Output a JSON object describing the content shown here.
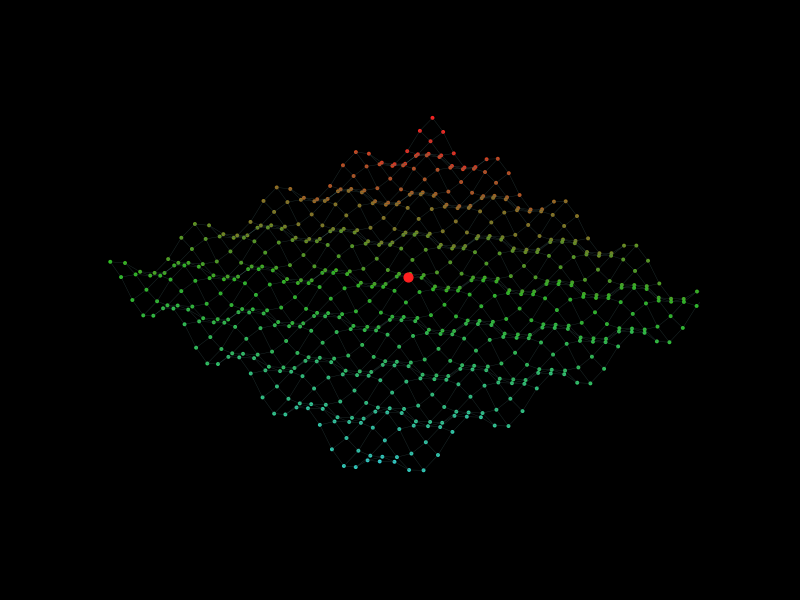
{
  "chart_data": {
    "type": "surface3d",
    "tick_labels": false,
    "x": [
      0,
      1,
      2,
      3,
      4,
      5,
      6,
      7,
      8,
      9,
      10,
      11,
      12,
      13,
      14,
      15,
      16,
      17,
      18,
      19,
      20,
      21,
      22,
      23,
      24
    ],
    "y": [
      0,
      1,
      2,
      3,
      4,
      5,
      6,
      7,
      8,
      9,
      10,
      11,
      12,
      13,
      14,
      15,
      16,
      17,
      18,
      19,
      20,
      21,
      22,
      23,
      24
    ],
    "xlim": [
      0,
      24
    ],
    "ylim": [
      0,
      24
    ],
    "zlim": [
      -4,
      4
    ],
    "colors": [
      "#ff2020",
      "#30c020",
      "#30d0d0"
    ],
    "z": [
      [
        1,
        0.5,
        -0.5,
        -1,
        -0.5,
        0.5,
        1,
        0.5,
        -0.5,
        -1,
        -0.5,
        0.5,
        1,
        0.5,
        -0.5,
        -1,
        -0.5,
        0.5,
        1,
        0.5,
        -0.5,
        -1,
        -0.5,
        0.5,
        1
      ],
      [
        0.5,
        0.25,
        -0.25,
        -0.5,
        -0.25,
        0.25,
        0.5,
        0.25,
        -0.25,
        -0.5,
        -0.25,
        0.25,
        0.5,
        0.25,
        -0.25,
        -0.5,
        -0.25,
        0.25,
        0.5,
        0.25,
        -0.25,
        -0.5,
        -0.25,
        0.25,
        0.5
      ],
      [
        -0.5,
        -0.25,
        0.25,
        0.5,
        0.25,
        -0.25,
        -0.5,
        -0.25,
        0.25,
        0.5,
        0.25,
        -0.25,
        -0.5,
        -0.25,
        0.25,
        0.5,
        0.25,
        -0.25,
        -0.5,
        -0.25,
        0.25,
        0.5,
        0.25,
        -0.25,
        -0.5
      ],
      [
        -1,
        -0.5,
        0.5,
        1,
        0.5,
        -0.5,
        -1,
        -0.5,
        0.5,
        1,
        0.5,
        -0.5,
        -1,
        -0.5,
        0.5,
        1,
        0.5,
        -0.5,
        -1,
        -0.5,
        0.5,
        1,
        0.5,
        -0.5,
        -1
      ],
      [
        -0.5,
        -0.25,
        0.25,
        0.5,
        0.25,
        -0.25,
        -0.5,
        -0.25,
        0.25,
        0.5,
        0.25,
        -0.25,
        -0.5,
        -0.25,
        0.25,
        0.5,
        0.25,
        -0.25,
        -0.5,
        -0.25,
        0.25,
        0.5,
        0.25,
        -0.25,
        -0.5
      ],
      [
        0.5,
        0.25,
        -0.25,
        -0.5,
        -0.25,
        0.25,
        0.5,
        0.25,
        -0.25,
        -0.5,
        -0.25,
        0.25,
        0.5,
        0.25,
        -0.25,
        -0.5,
        -0.25,
        0.25,
        0.5,
        0.25,
        -0.25,
        -0.5,
        -0.25,
        0.25,
        0.5
      ],
      [
        1,
        0.5,
        -0.5,
        -1,
        -0.5,
        0.5,
        1,
        0.5,
        -0.5,
        -1,
        -0.5,
        0.5,
        1,
        0.5,
        -0.5,
        -1,
        -0.5,
        0.5,
        1,
        0.5,
        -0.5,
        -1,
        -0.5,
        0.5,
        1
      ],
      [
        0.5,
        0.25,
        -0.25,
        -0.5,
        -0.25,
        0.25,
        0.5,
        0.25,
        -0.25,
        -0.5,
        -0.25,
        0.25,
        0.5,
        0.25,
        -0.25,
        -0.5,
        -0.25,
        0.25,
        0.5,
        0.25,
        -0.25,
        -0.5,
        -0.25,
        0.25,
        0.5
      ],
      [
        -0.5,
        -0.25,
        0.25,
        0.5,
        0.25,
        -0.25,
        -0.5,
        -0.25,
        0.25,
        0.5,
        0.25,
        -0.25,
        -0.5,
        -0.25,
        0.25,
        0.5,
        0.25,
        -0.25,
        -0.5,
        -0.25,
        0.25,
        0.5,
        0.25,
        -0.25,
        -0.5
      ],
      [
        -1,
        -0.5,
        0.5,
        1,
        0.5,
        -0.5,
        -1,
        -0.5,
        0.5,
        1,
        0.5,
        -0.5,
        -1,
        -0.5,
        0.5,
        1,
        0.5,
        -0.5,
        -1,
        -0.5,
        0.5,
        1,
        0.5,
        -0.5,
        -1
      ],
      [
        -0.5,
        -0.25,
        0.25,
        0.5,
        0.25,
        -0.25,
        -0.5,
        -0.25,
        0.25,
        0.5,
        0.25,
        -0.25,
        -0.5,
        -0.25,
        0.25,
        0.5,
        0.25,
        -0.25,
        -0.5,
        -0.25,
        0.25,
        0.5,
        0.25,
        -0.25,
        -0.5
      ],
      [
        0.5,
        0.25,
        -0.25,
        -0.5,
        -0.25,
        0.25,
        0.5,
        0.25,
        -0.25,
        -0.5,
        -0.25,
        0.25,
        0.5,
        0.25,
        -0.25,
        -0.5,
        -0.25,
        0.25,
        0.5,
        0.25,
        -0.25,
        -0.5,
        -0.25,
        0.25,
        0.5
      ],
      [
        1,
        0.5,
        -0.5,
        -1,
        -0.5,
        0.5,
        1,
        0.5,
        -0.5,
        -1,
        -0.5,
        0.5,
        1,
        0.5,
        -0.5,
        -1,
        -0.5,
        0.5,
        1,
        0.5,
        -0.5,
        -1,
        -0.5,
        0.5,
        1
      ],
      [
        0.5,
        0.25,
        -0.25,
        -0.5,
        -0.25,
        0.25,
        0.5,
        0.25,
        -0.25,
        -0.5,
        -0.25,
        0.25,
        0.5,
        0.25,
        -0.25,
        -0.5,
        -0.25,
        0.25,
        0.5,
        0.25,
        -0.25,
        -0.5,
        -0.25,
        0.25,
        0.5
      ],
      [
        -0.5,
        -0.25,
        0.25,
        0.5,
        0.25,
        -0.25,
        -0.5,
        -0.25,
        0.25,
        0.5,
        0.25,
        -0.25,
        -0.5,
        -0.25,
        0.25,
        0.5,
        0.25,
        -0.25,
        -0.5,
        -0.25,
        0.25,
        0.5,
        0.25,
        -0.25,
        -0.5
      ],
      [
        -1,
        -0.5,
        0.5,
        1,
        0.5,
        -0.5,
        -1,
        -0.5,
        0.5,
        1,
        0.5,
        -0.5,
        -1,
        -0.5,
        0.5,
        1,
        0.5,
        -0.5,
        -1,
        -0.5,
        0.5,
        1,
        0.5,
        -0.5,
        -1
      ],
      [
        -0.5,
        -0.25,
        0.25,
        0.5,
        0.25,
        -0.25,
        -0.5,
        -0.25,
        0.25,
        0.5,
        0.25,
        -0.25,
        -0.5,
        -0.25,
        0.25,
        0.5,
        0.25,
        -0.25,
        -0.5,
        -0.25,
        0.25,
        0.5,
        0.25,
        -0.25,
        -0.5
      ],
      [
        0.5,
        0.25,
        -0.25,
        -0.5,
        -0.25,
        0.25,
        0.5,
        0.25,
        -0.25,
        -0.5,
        -0.25,
        0.25,
        0.5,
        0.25,
        -0.25,
        -0.5,
        -0.25,
        0.25,
        0.5,
        0.25,
        -0.25,
        -0.5,
        -0.25,
        0.25,
        0.5
      ],
      [
        1,
        0.5,
        -0.5,
        -1,
        -0.5,
        0.5,
        1,
        0.5,
        -0.5,
        -1,
        -0.5,
        0.5,
        1,
        0.5,
        -0.5,
        -1,
        -0.5,
        0.5,
        1,
        0.5,
        -0.5,
        -1,
        -0.5,
        0.5,
        1
      ],
      [
        0.5,
        0.25,
        -0.25,
        -0.5,
        -0.25,
        0.25,
        0.5,
        0.25,
        -0.25,
        -0.5,
        -0.25,
        0.25,
        0.5,
        0.25,
        -0.25,
        -0.5,
        -0.25,
        0.25,
        0.5,
        0.25,
        -0.25,
        -0.5,
        -0.25,
        0.25,
        0.5
      ],
      [
        -0.5,
        -0.25,
        0.25,
        0.5,
        0.25,
        -0.25,
        -0.5,
        -0.25,
        0.25,
        0.5,
        0.25,
        -0.25,
        -0.5,
        -0.25,
        0.25,
        0.5,
        0.25,
        -0.25,
        -0.5,
        -0.25,
        0.25,
        0.5,
        0.25,
        -0.25,
        -0.5
      ],
      [
        -1,
        -0.5,
        0.5,
        1,
        0.5,
        -0.5,
        -1,
        -0.5,
        0.5,
        1,
        0.5,
        -0.5,
        -1,
        -0.5,
        0.5,
        1,
        0.5,
        -0.5,
        -1,
        -0.5,
        0.5,
        1,
        0.5,
        -0.5,
        -1
      ],
      [
        -0.5,
        -0.25,
        0.25,
        0.5,
        0.25,
        -0.25,
        -0.5,
        -0.25,
        0.25,
        0.5,
        0.25,
        -0.25,
        -0.5,
        -0.25,
        0.25,
        0.5,
        0.25,
        -0.25,
        -0.5,
        -0.25,
        0.25,
        0.5,
        0.25,
        -0.25,
        -0.5
      ],
      [
        0.5,
        0.25,
        -0.25,
        -0.5,
        -0.25,
        0.25,
        0.5,
        0.25,
        -0.25,
        -0.5,
        -0.25,
        0.25,
        0.5,
        0.25,
        -0.25,
        -0.5,
        -0.25,
        0.25,
        0.5,
        0.25,
        -0.25,
        -0.5,
        -0.25,
        0.25,
        0.5
      ],
      [
        1,
        0.5,
        -0.5,
        -1,
        -0.5,
        0.5,
        1,
        0.5,
        -0.5,
        -1,
        -0.5,
        0.5,
        1,
        0.5,
        -0.5,
        -1,
        -0.5,
        0.5,
        1,
        0.5,
        -0.5,
        -1,
        -0.5,
        0.5,
        1
      ]
    ],
    "highlight": {
      "x": 12,
      "y": 12,
      "z": 1,
      "color": "#ff2020"
    }
  }
}
